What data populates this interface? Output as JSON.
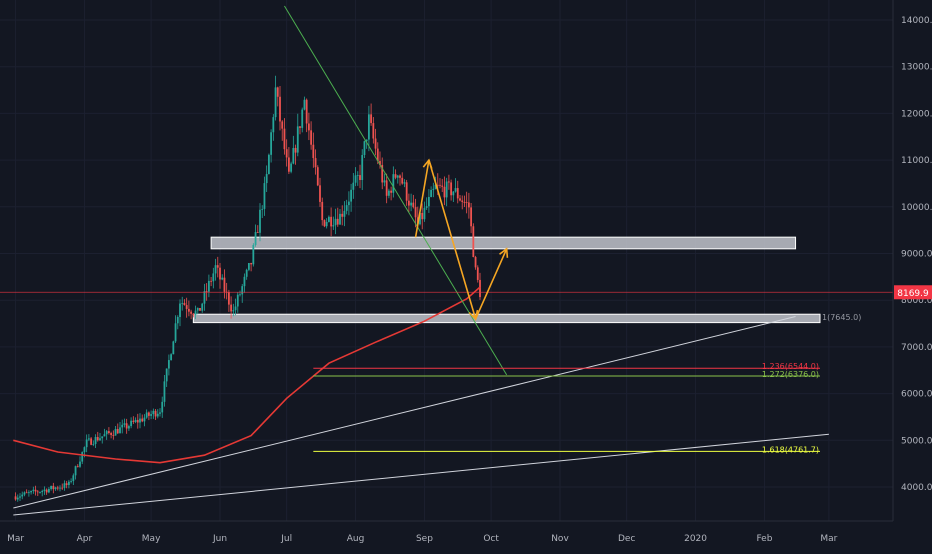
{
  "colors": {
    "background": "#131722",
    "grid": "#1c2030",
    "axis_text": "#b2b5be",
    "candle_up": "#26a69a",
    "candle_down": "#ef5350",
    "ma_line": "#e53935",
    "trendline": "#4caf50",
    "support_line": "#d1d4dc",
    "projection": "#f5a623",
    "zone_fill": "#c8cbd2",
    "price_tag": "#f23645",
    "fib_1": "#9598a1",
    "fib_1236": "#f23645",
    "fib_1272": "#8bc34a",
    "fib_1618": "#eeff41"
  },
  "chart_data": {
    "type": "candlestick",
    "title": "",
    "xlabel": "",
    "ylabel": "",
    "ylim": [
      3200,
      14400
    ],
    "y_ticks": [
      "14000.0",
      "13000.0",
      "12000.0",
      "11000.0",
      "10000.0",
      "9000.0",
      "8000.0",
      "7000.0",
      "6000.0",
      "5000.0",
      "4000.0"
    ],
    "x_ticks": [
      "Mar",
      "Apr",
      "May",
      "Jun",
      "Jul",
      "Aug",
      "Sep",
      "Oct",
      "Nov",
      "Dec",
      "2020",
      "Feb",
      "Mar"
    ],
    "current_price": 8169.9,
    "current_price_label": "8169.9",
    "ohlc_keypoints": [
      [
        "2019-03-01",
        3800
      ],
      [
        "2019-03-25",
        4050
      ],
      [
        "2019-04-02",
        4950
      ],
      [
        "2019-04-20",
        5300
      ],
      [
        "2019-05-05",
        5650
      ],
      [
        "2019-05-14",
        8000
      ],
      [
        "2019-05-22",
        7700
      ],
      [
        "2019-05-30",
        8700
      ],
      [
        "2019-06-07",
        7750
      ],
      [
        "2019-06-15",
        8800
      ],
      [
        "2019-06-22",
        10600
      ],
      [
        "2019-06-26",
        12500
      ],
      [
        "2019-07-02",
        10600
      ],
      [
        "2019-07-09",
        12300
      ],
      [
        "2019-07-17",
        9700
      ],
      [
        "2019-07-25",
        9800
      ],
      [
        "2019-08-03",
        10700
      ],
      [
        "2019-08-07",
        11850
      ],
      [
        "2019-08-15",
        10200
      ],
      [
        "2019-08-20",
        10800
      ],
      [
        "2019-08-29",
        9600
      ],
      [
        "2019-09-06",
        10400
      ],
      [
        "2019-09-14",
        10350
      ],
      [
        "2019-09-21",
        10000
      ],
      [
        "2019-09-24",
        8600
      ],
      [
        "2019-09-26",
        8170
      ]
    ],
    "moving_average": [
      [
        "2019-02-28",
        5000
      ],
      [
        "2019-03-20",
        4750
      ],
      [
        "2019-04-15",
        4600
      ],
      [
        "2019-05-05",
        4520
      ],
      [
        "2019-05-25",
        4680
      ],
      [
        "2019-06-15",
        5100
      ],
      [
        "2019-07-01",
        5900
      ],
      [
        "2019-07-20",
        6650
      ],
      [
        "2019-08-10",
        7100
      ],
      [
        "2019-09-01",
        7550
      ],
      [
        "2019-09-20",
        8030
      ],
      [
        "2019-09-26",
        8280
      ]
    ],
    "zones": [
      {
        "from": "2019-05-28",
        "to": "2020-02-15",
        "low": 9100,
        "high": 9350
      },
      {
        "from": "2019-05-20",
        "to": "2020-02-26",
        "low": 7520,
        "high": 7700
      }
    ],
    "trendlines": [
      {
        "role": "downtrend",
        "points": [
          [
            "2019-06-30",
            14300
          ],
          [
            "2019-10-08",
            6400
          ]
        ]
      },
      {
        "role": "support_1",
        "points": [
          [
            "2019-02-28",
            3550
          ],
          [
            "2020-02-15",
            7650
          ]
        ]
      },
      {
        "role": "support_2",
        "points": [
          [
            "2019-02-28",
            3400
          ],
          [
            "2020-03-01",
            5130
          ]
        ]
      }
    ],
    "projection_path": [
      [
        "2019-08-28",
        9350
      ],
      [
        "2019-09-03",
        11000
      ],
      [
        "2019-09-24",
        7600
      ],
      [
        "2019-10-08",
        9100
      ]
    ],
    "fib_levels": [
      {
        "label": "1(7645.0)",
        "value": 7645,
        "from": "2020-02-26",
        "color_key": "fib_1"
      },
      {
        "label": "1.236(6544.0)",
        "value": 6544,
        "from": "2019-07-13",
        "color_key": "fib_1236"
      },
      {
        "label": "1.272(6376.0)",
        "value": 6376,
        "from": "2019-07-13",
        "color_key": "fib_1272"
      },
      {
        "label": "1.618(4761.7)",
        "value": 4761.7,
        "from": "2019-07-13",
        "color_key": "fib_1618"
      }
    ]
  }
}
